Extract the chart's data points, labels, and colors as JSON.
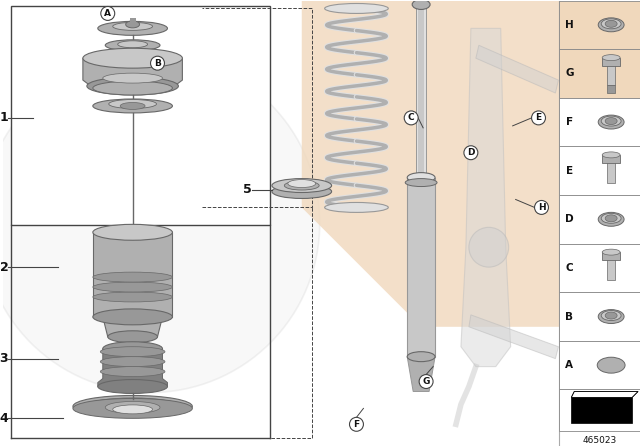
{
  "bg_color": "#ffffff",
  "peach_color": "#f0d8bc",
  "border_color": "#444444",
  "label_color": "#111111",
  "gray1": "#c8c8c8",
  "gray2": "#b0b0b0",
  "gray3": "#989898",
  "gray4": "#808080",
  "gray_light": "#e0e0e0",
  "gray_dark": "#686868",
  "circle_bg": "#e8e8e8",
  "right_labels": [
    "H",
    "G",
    "F",
    "E",
    "D",
    "C",
    "B",
    "A"
  ],
  "part_number": "465023"
}
